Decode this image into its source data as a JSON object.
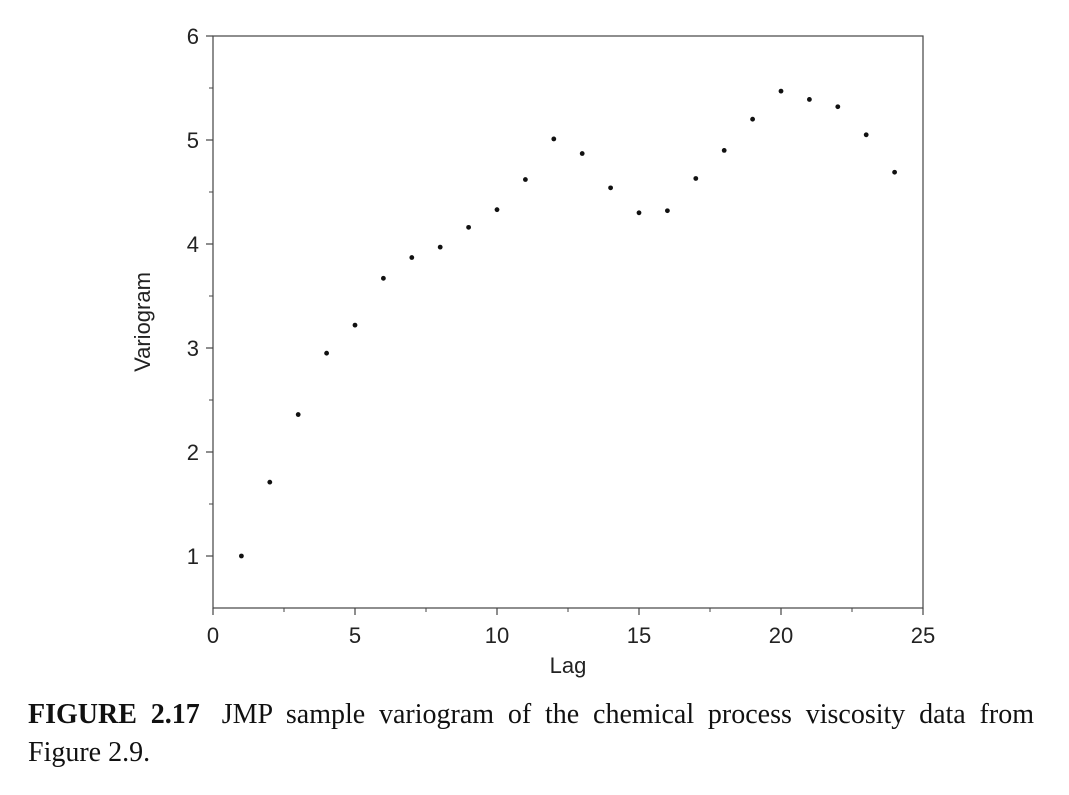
{
  "chart_data": {
    "type": "scatter",
    "xlabel": "Lag",
    "ylabel": "Variogram",
    "xlim": [
      0,
      25
    ],
    "ylim": [
      0.5,
      6
    ],
    "xticks": [
      0,
      5,
      10,
      15,
      20,
      25
    ],
    "yticks": [
      1,
      2,
      3,
      4,
      5,
      6
    ],
    "grid": false,
    "points": [
      {
        "x": 1,
        "y": 1.0
      },
      {
        "x": 2,
        "y": 1.71
      },
      {
        "x": 3,
        "y": 2.36
      },
      {
        "x": 4,
        "y": 2.95
      },
      {
        "x": 5,
        "y": 3.22
      },
      {
        "x": 6,
        "y": 3.67
      },
      {
        "x": 7,
        "y": 3.87
      },
      {
        "x": 8,
        "y": 3.97
      },
      {
        "x": 9,
        "y": 4.16
      },
      {
        "x": 10,
        "y": 4.33
      },
      {
        "x": 11,
        "y": 4.62
      },
      {
        "x": 12,
        "y": 5.01
      },
      {
        "x": 13,
        "y": 4.87
      },
      {
        "x": 14,
        "y": 4.54
      },
      {
        "x": 15,
        "y": 4.3
      },
      {
        "x": 16,
        "y": 4.32
      },
      {
        "x": 17,
        "y": 4.63
      },
      {
        "x": 18,
        "y": 4.9
      },
      {
        "x": 19,
        "y": 5.2
      },
      {
        "x": 20,
        "y": 5.47
      },
      {
        "x": 21,
        "y": 5.39
      },
      {
        "x": 22,
        "y": 5.32
      },
      {
        "x": 23,
        "y": 5.05
      },
      {
        "x": 24,
        "y": 4.69
      }
    ]
  },
  "caption": {
    "label": "FIGURE 2.17",
    "text": "JMP sample variogram of the chemical process viscosity data from Figure 2.9."
  },
  "colors": {
    "axis": "#444444",
    "point": "#111111"
  }
}
